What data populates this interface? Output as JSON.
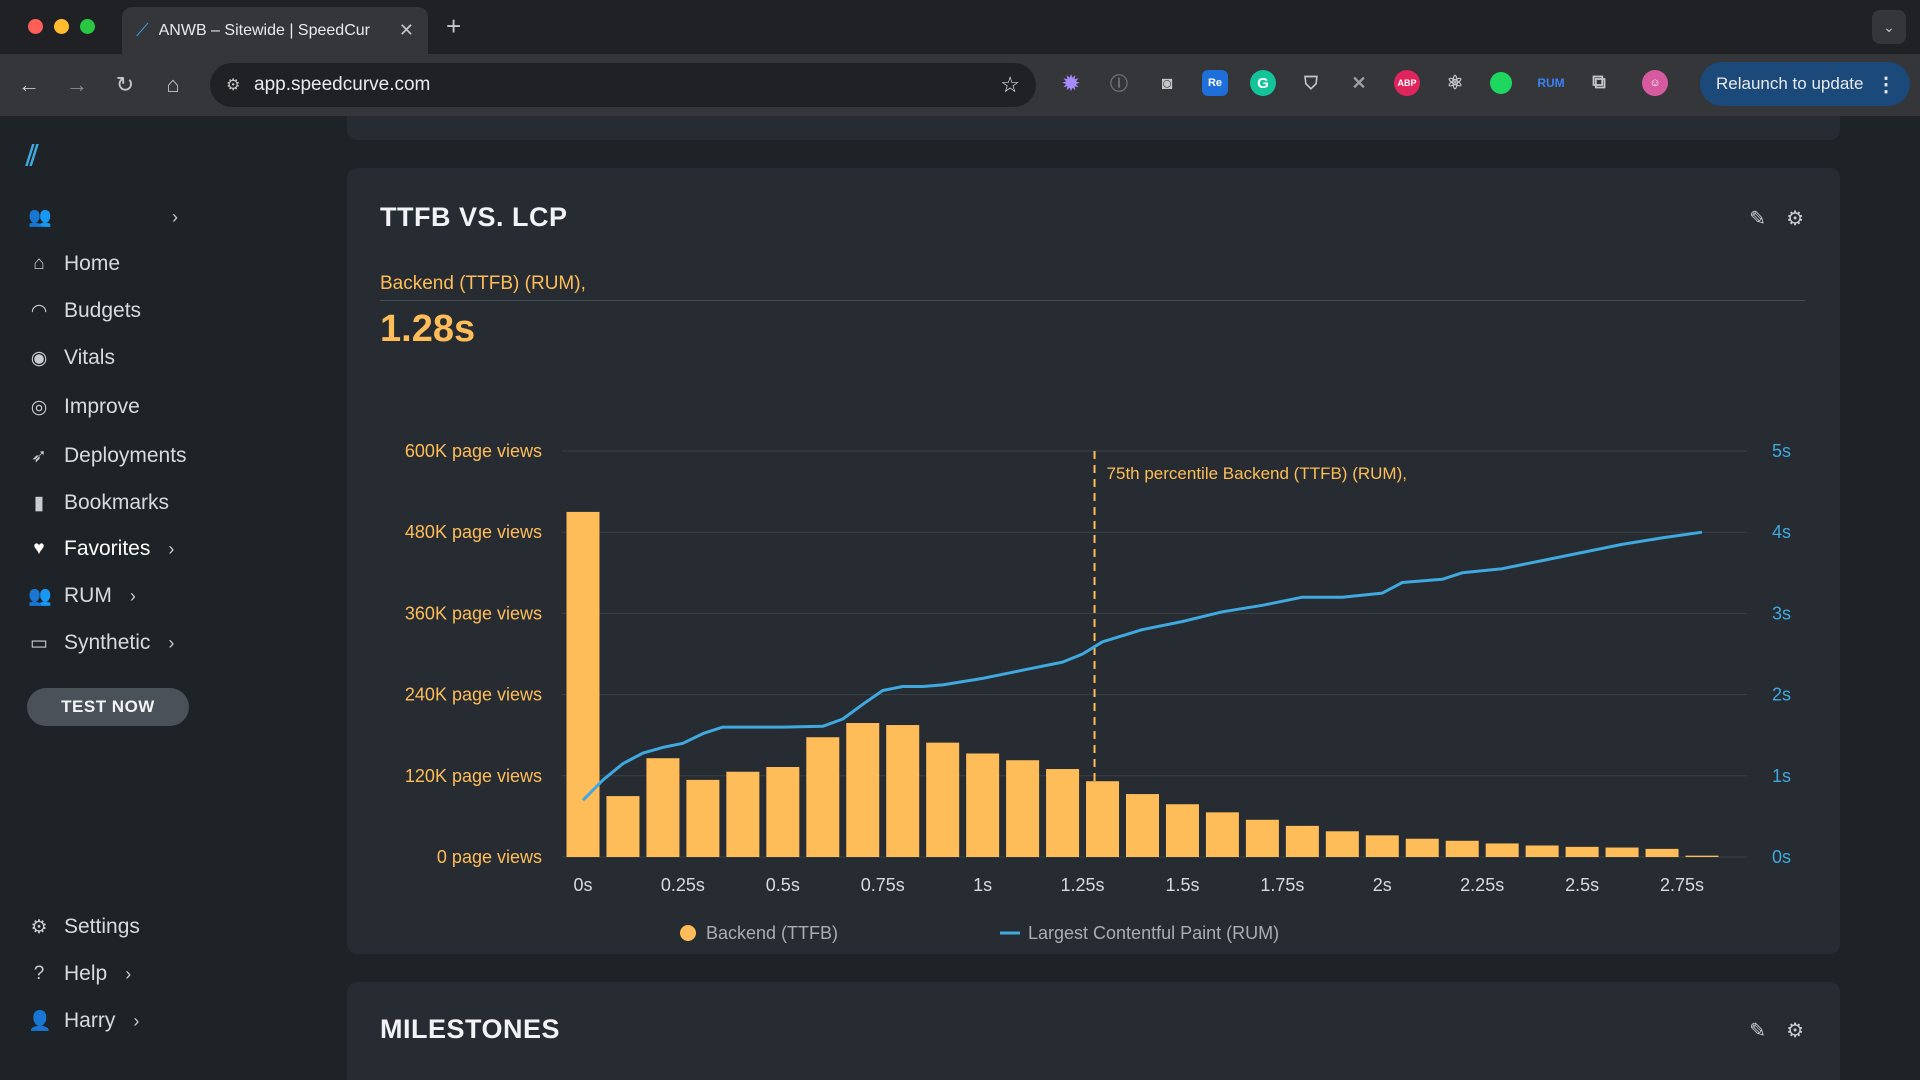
{
  "browser": {
    "tab_title": "ANWB – Sitewide | SpeedCur",
    "url": "app.speedcurve.com",
    "relaunch_label": "Relaunch to update",
    "extensions": [
      "gear-ext",
      "info-ext",
      "camera-ext",
      "re-ext",
      "grammarly-ext",
      "shield-ext",
      "tool-ext",
      "abp-ext",
      "react-ext",
      "green-dot-ext",
      "rum-ext",
      "puzzle-ext",
      "profile-ext"
    ],
    "ext_labels": {
      "re": "Re",
      "abp": "ABP",
      "rum": "RUM"
    }
  },
  "sidebar": {
    "items": [
      {
        "label": "",
        "icon": "users-icon",
        "chevron": true
      },
      {
        "label": "Home",
        "icon": "home-icon"
      },
      {
        "label": "Budgets",
        "icon": "gauge-icon"
      },
      {
        "label": "Vitals",
        "icon": "heartbeat-icon"
      },
      {
        "label": "Improve",
        "icon": "target-icon"
      },
      {
        "label": "Deployments",
        "icon": "rocket-icon"
      },
      {
        "label": "Bookmarks",
        "icon": "bookmark-icon"
      },
      {
        "label": "Favorites",
        "icon": "heart-icon",
        "chevron": true
      },
      {
        "label": "RUM",
        "icon": "users-icon",
        "chevron": true
      },
      {
        "label": "Synthetic",
        "icon": "monitor-icon",
        "chevron": true
      }
    ],
    "test_now": "TEST NOW",
    "bottom": [
      {
        "label": "Settings",
        "icon": "gear-icon"
      },
      {
        "label": "Help",
        "icon": "help-icon",
        "chevron": true
      },
      {
        "label": "Harry",
        "icon": "user-icon",
        "chevron": true
      }
    ]
  },
  "card": {
    "title": "TTFB VS. LCP",
    "metric_label": "Backend (TTFB) (RUM),",
    "metric_value": "1.28s"
  },
  "card2": {
    "title": "MILESTONES"
  },
  "colors": {
    "bar": "#ffbd59",
    "line": "#3fa9e0",
    "accent_left_axis": "#ffbd59",
    "accent_right_axis": "#3fa9e0"
  },
  "chart_data": {
    "type": "bar",
    "annotation": "75th percentile Backend (TTFB) (RUM),",
    "annotation_x": 1.28,
    "x_tick_labels": [
      "0s",
      "0.25s",
      "0.5s",
      "0.75s",
      "1s",
      "1.25s",
      "1.5s",
      "1.75s",
      "2s",
      "2.25s",
      "2.5s",
      "2.75s"
    ],
    "y_left_tick_labels": [
      "0 page views",
      "120K page views",
      "240K page views",
      "360K page views",
      "480K page views",
      "600K page views"
    ],
    "y_right_tick_labels": [
      "0s",
      "1s",
      "2s",
      "3s",
      "4s",
      "5s"
    ],
    "ylim_left": [
      0,
      600000
    ],
    "ylim_right": [
      0,
      5
    ],
    "xlim": [
      0,
      2.875
    ],
    "legend": [
      "Backend (TTFB)",
      "Largest Contentful Paint (RUM)"
    ],
    "legend_placement": "bottom",
    "series": [
      {
        "name": "Backend (TTFB)",
        "kind": "bar",
        "x": [
          0,
          0.1,
          0.2,
          0.3,
          0.4,
          0.5,
          0.6,
          0.7,
          0.8,
          0.9,
          1.0,
          1.1,
          1.2,
          1.3,
          1.4,
          1.5,
          1.6,
          1.7,
          1.8,
          1.9,
          2.0,
          2.1,
          2.2,
          2.3,
          2.4,
          2.5,
          2.6,
          2.7,
          2.8
        ],
        "values": [
          510000,
          90000,
          146000,
          114000,
          126000,
          133000,
          177000,
          198000,
          195000,
          169000,
          153000,
          143000,
          130000,
          112000,
          93000,
          78000,
          66000,
          55000,
          46000,
          38000,
          32000,
          27000,
          24000,
          20000,
          17000,
          15000,
          14000,
          12000,
          2000
        ]
      },
      {
        "name": "Largest Contentful Paint (RUM)",
        "kind": "line",
        "x": [
          0,
          0.05,
          0.1,
          0.15,
          0.2,
          0.25,
          0.3,
          0.35,
          0.4,
          0.5,
          0.6,
          0.65,
          0.7,
          0.75,
          0.8,
          0.85,
          0.9,
          1.0,
          1.05,
          1.1,
          1.2,
          1.25,
          1.3,
          1.4,
          1.5,
          1.6,
          1.7,
          1.8,
          1.9,
          2.0,
          2.05,
          2.1,
          2.15,
          2.2,
          2.3,
          2.4,
          2.5,
          2.6,
          2.7,
          2.8
        ],
        "values": [
          0.7,
          0.95,
          1.15,
          1.28,
          1.35,
          1.4,
          1.52,
          1.6,
          1.6,
          1.6,
          1.61,
          1.7,
          1.88,
          2.05,
          2.1,
          2.1,
          2.12,
          2.2,
          2.25,
          2.3,
          2.4,
          2.5,
          2.65,
          2.8,
          2.9,
          3.02,
          3.1,
          3.2,
          3.2,
          3.25,
          3.38,
          3.4,
          3.42,
          3.5,
          3.55,
          3.65,
          3.75,
          3.85,
          3.93,
          4.0
        ]
      }
    ]
  }
}
